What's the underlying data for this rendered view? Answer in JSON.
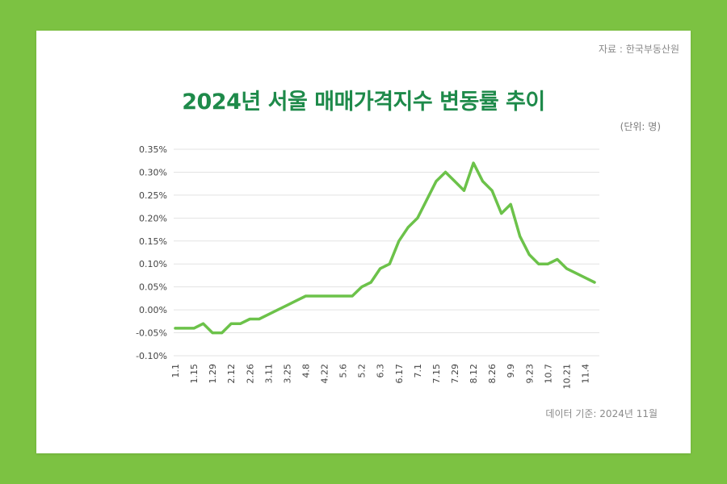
{
  "source": "자료 : 한국부동산원",
  "unit": "(단위: 명)",
  "basis": "데이터 기준: 2024년 11월",
  "colors": {
    "background": "#7cc242",
    "card": "#ffffff",
    "title": "#1e8a4a",
    "line": "#6cc24a",
    "grid": "#e3e3e3"
  },
  "chart_data": {
    "type": "line",
    "title": "2024년 서울 매매가격지수 변동률 추이",
    "xlabel": "",
    "ylabel": "",
    "ylim": [
      -0.1,
      0.35
    ],
    "yticks": [
      {
        "value": 0.35,
        "label": "0.35%"
      },
      {
        "value": 0.3,
        "label": "0.30%"
      },
      {
        "value": 0.25,
        "label": "0.25%"
      },
      {
        "value": 0.2,
        "label": "0.20%"
      },
      {
        "value": 0.15,
        "label": "0.15%"
      },
      {
        "value": 0.1,
        "label": "0.10%"
      },
      {
        "value": 0.05,
        "label": "0.05%"
      },
      {
        "value": 0.0,
        "label": "0.00%"
      },
      {
        "value": -0.05,
        "label": "-0.05%"
      },
      {
        "value": -0.1,
        "label": "-0.10%"
      }
    ],
    "grid": true,
    "x": [
      "1.1",
      "1.8",
      "1.15",
      "1.22",
      "1.29",
      "2.5",
      "2.12",
      "2.19",
      "2.26",
      "3.4",
      "3.11",
      "3.18",
      "3.25",
      "4.1",
      "4.8",
      "4.15",
      "4.22",
      "4.29",
      "5.6",
      "5.13",
      "5.2",
      "5.27",
      "6.3",
      "6.10",
      "6.17",
      "6.24",
      "7.1",
      "7.8",
      "7.15",
      "7.22",
      "7.29",
      "8.5",
      "8.12",
      "8.19",
      "8.26",
      "9.2",
      "9.9",
      "9.16",
      "9.23",
      "9.30",
      "10.7",
      "10.14",
      "10.21",
      "10.28",
      "11.4",
      "11.11"
    ],
    "x_tick_labels": [
      "1.1",
      "1.15",
      "1.29",
      "2.12",
      "2.26",
      "3.11",
      "3.25",
      "4.8",
      "4.22",
      "5.6",
      "5.2",
      "6.3",
      "6.17",
      "7.1",
      "7.15",
      "7.29",
      "8.12",
      "8.26",
      "9.9",
      "9.23",
      "10.7",
      "10.21",
      "11.4"
    ],
    "series": [
      {
        "values": [
          -0.04,
          -0.04,
          -0.04,
          -0.03,
          -0.05,
          -0.05,
          -0.03,
          -0.03,
          -0.02,
          -0.02,
          -0.01,
          0.0,
          0.01,
          0.02,
          0.03,
          0.03,
          0.03,
          0.03,
          0.03,
          0.03,
          0.05,
          0.06,
          0.09,
          0.1,
          0.15,
          0.18,
          0.2,
          0.24,
          0.28,
          0.3,
          0.28,
          0.26,
          0.32,
          0.28,
          0.26,
          0.21,
          0.23,
          0.16,
          0.12,
          0.1,
          0.1,
          0.11,
          0.09,
          0.08,
          0.07,
          0.06
        ]
      }
    ]
  }
}
